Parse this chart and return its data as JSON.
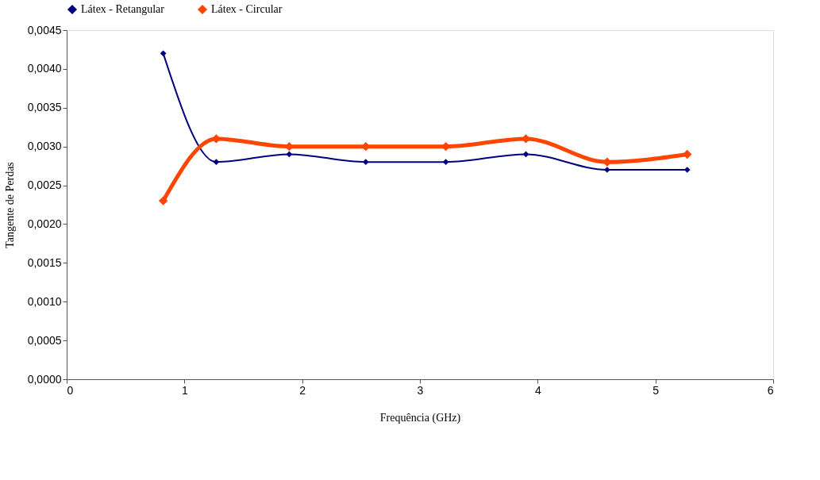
{
  "chart_data": {
    "type": "line",
    "xlabel": "Frequência (GHz)",
    "ylabel": "Tangente de Perdas",
    "x": [
      0.82,
      1.27,
      1.89,
      2.54,
      3.22,
      3.9,
      4.59,
      5.27
    ],
    "series": [
      {
        "name": "Látex - Retangular",
        "color": "#000080",
        "values": [
          0.0042,
          0.0028,
          0.0029,
          0.0028,
          0.0028,
          0.0029,
          0.0027,
          0.0027
        ]
      },
      {
        "name": "Látex - Circular",
        "color": "#ff4500",
        "values": [
          0.0023,
          0.0031,
          0.003,
          0.003,
          0.003,
          0.0031,
          0.0028,
          0.0029
        ]
      }
    ],
    "xlim": [
      0,
      6
    ],
    "xticks": [
      0,
      1,
      2,
      3,
      4,
      5,
      6
    ],
    "ylim": [
      0,
      0.0045
    ],
    "yticks": [
      {
        "value": 0,
        "label": "0,0000"
      },
      {
        "value": 0.0005,
        "label": "0,0005"
      },
      {
        "value": 0.001,
        "label": "0,0010"
      },
      {
        "value": 0.0015,
        "label": "0,0015"
      },
      {
        "value": 0.002,
        "label": "0,0020"
      },
      {
        "value": 0.0025,
        "label": "0,0025"
      },
      {
        "value": 0.003,
        "label": "0,0030"
      },
      {
        "value": 0.0035,
        "label": "0,0035"
      },
      {
        "value": 0.004,
        "label": "0,0040"
      },
      {
        "value": 0.0045,
        "label": "0,0045"
      }
    ],
    "grid": false,
    "legend": "top",
    "marker": "diamond",
    "line_style": "solid"
  }
}
